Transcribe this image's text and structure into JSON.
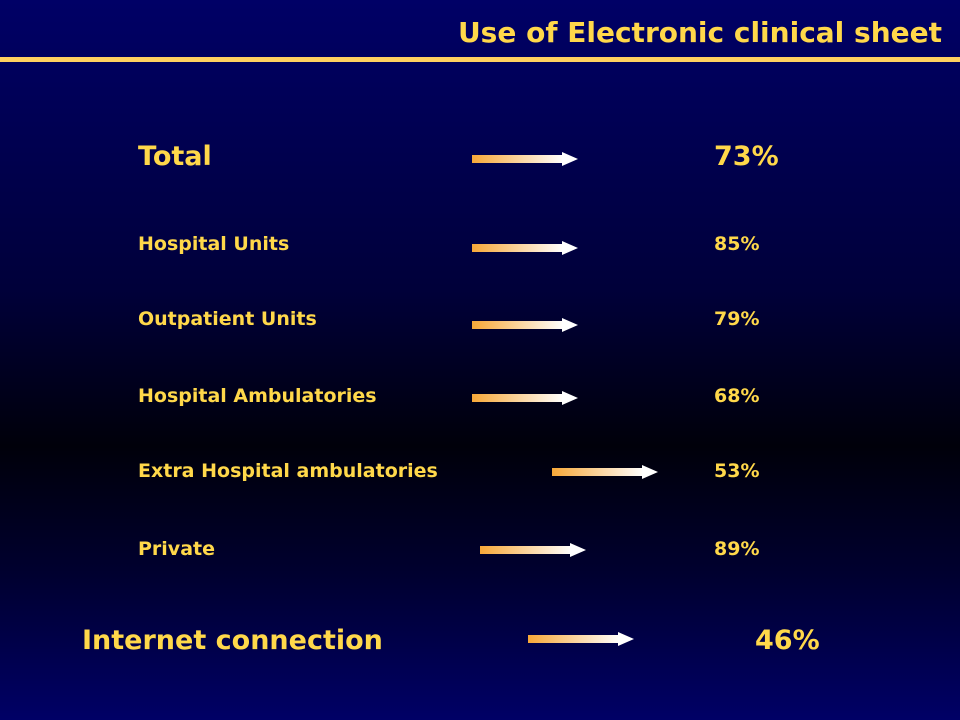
{
  "title": "Use of Electronic clinical sheet",
  "rows": [
    {
      "label": "Total",
      "value": "73%"
    },
    {
      "label": "Hospital Units",
      "value": "85%"
    },
    {
      "label": "Outpatient Units",
      "value": "79%"
    },
    {
      "label": "Hospital Ambulatories",
      "value": "68%"
    },
    {
      "label": "Extra Hospital ambulatories",
      "value": "53%"
    },
    {
      "label": "Private",
      "value": "89%"
    }
  ],
  "internet": {
    "label": "Internet connection",
    "value": "46%"
  }
}
